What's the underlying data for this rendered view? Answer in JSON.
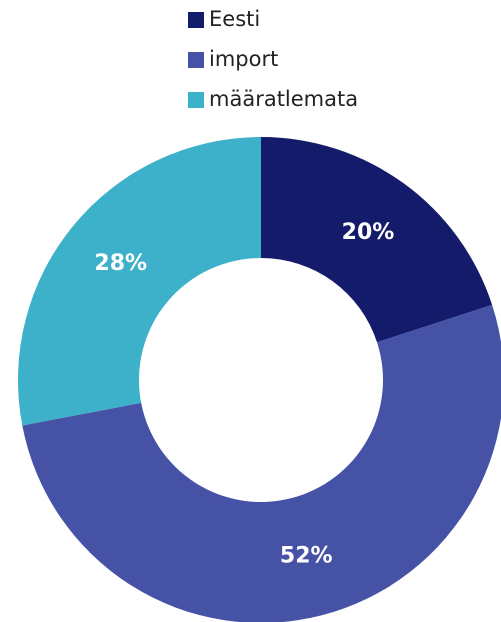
{
  "chart_data": {
    "type": "donut",
    "categories": [
      "Eesti",
      "import",
      "määratlemata"
    ],
    "values": [
      20,
      52,
      28
    ],
    "value_labels": [
      "20%",
      "52%",
      "28%"
    ],
    "colors": [
      "#141b6b",
      "#4652a6",
      "#3db1ca"
    ],
    "legend": "top"
  }
}
